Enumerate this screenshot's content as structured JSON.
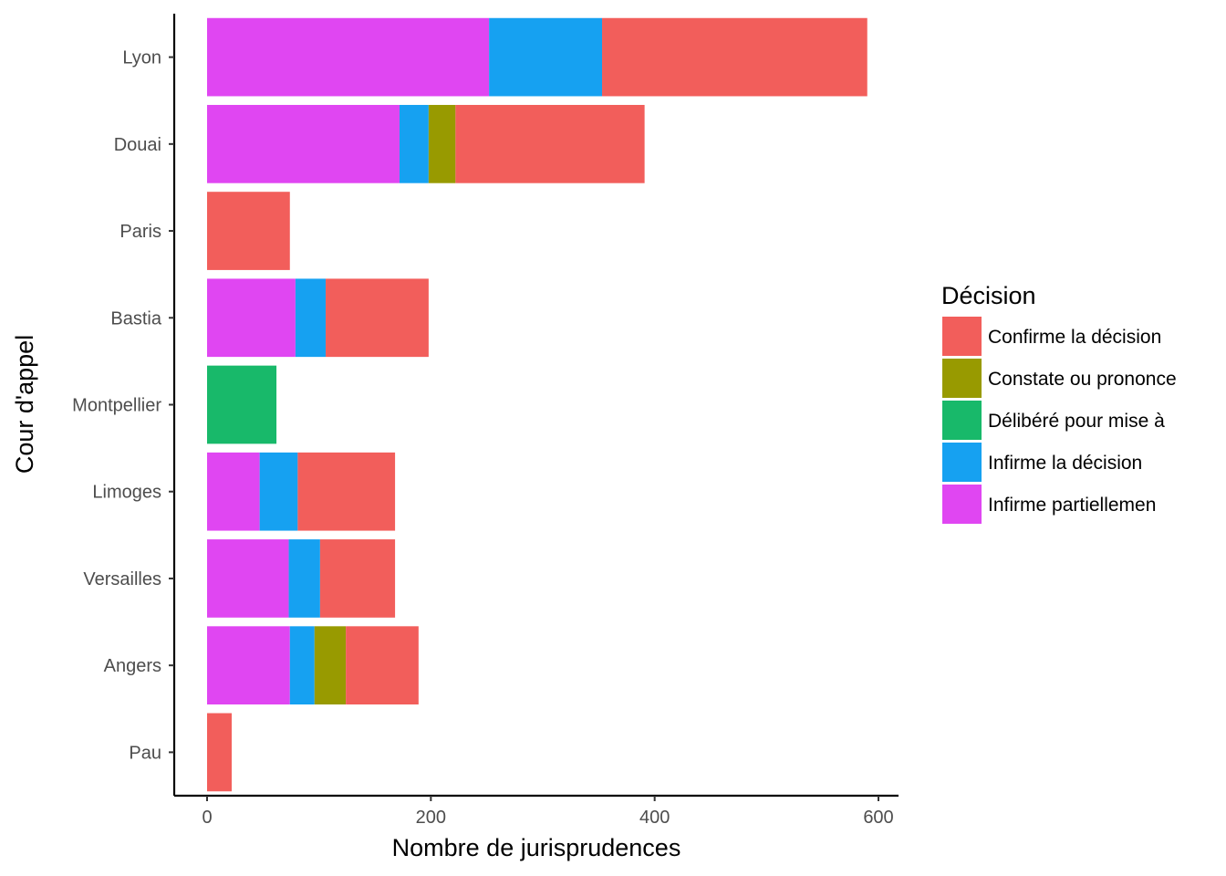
{
  "chart_data": {
    "type": "bar",
    "orientation": "horizontal",
    "stacked": true,
    "xlabel": "Nombre de jurisprudences",
    "ylabel": "Cour d'appel",
    "xlim": [
      -30,
      620
    ],
    "xticks": [
      0,
      200,
      400,
      600
    ],
    "grid": false,
    "legend_position": "right",
    "legend_title": "Décision",
    "categories": [
      "Lyon",
      "Douai",
      "Paris",
      "Bastia",
      "Montpellier",
      "Limoges",
      "Versailles",
      "Angers",
      "Pau"
    ],
    "series": [
      {
        "name": "Infirme partiellemen",
        "color": "#E046F2",
        "values": [
          252,
          172,
          0,
          79,
          0,
          47,
          73,
          74,
          0
        ]
      },
      {
        "name": "Infirme la décision",
        "color": "#16A1F1",
        "values": [
          101,
          26,
          0,
          27,
          0,
          34,
          28,
          22,
          0
        ]
      },
      {
        "name": "Constate ou prononce",
        "color": "#989A00",
        "values": [
          0,
          24,
          0,
          0,
          0,
          0,
          0,
          28,
          0
        ]
      },
      {
        "name": "Délibéré pour mise à",
        "color": "#18B96A",
        "values": [
          0,
          0,
          0,
          0,
          62,
          0,
          0,
          0,
          0
        ]
      },
      {
        "name": "Confirme la décision",
        "color": "#F25E5B",
        "values": [
          237,
          169,
          74,
          92,
          0,
          87,
          67,
          65,
          22
        ]
      }
    ],
    "legend_order": [
      "Confirme la décision",
      "Constate ou prononce",
      "Délibéré pour mise à",
      "Infirme la décision",
      "Infirme partiellemen"
    ]
  }
}
